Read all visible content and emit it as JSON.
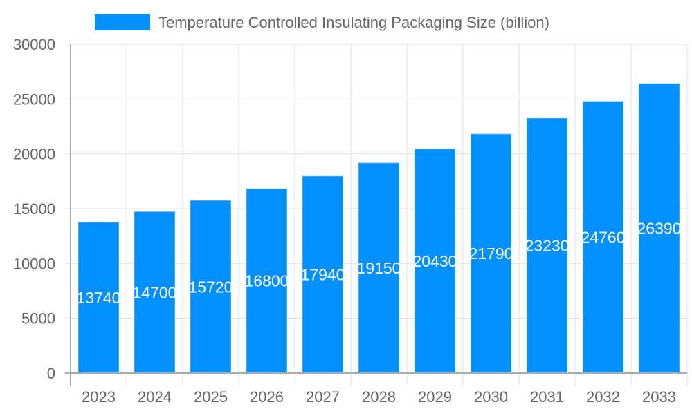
{
  "chart_data": {
    "type": "bar",
    "categories": [
      "2023",
      "2024",
      "2025",
      "2026",
      "2027",
      "2028",
      "2029",
      "2030",
      "2031",
      "2032",
      "2033"
    ],
    "series": [
      {
        "name": "Temperature Controlled Insulating Packaging Size (billion)",
        "values": [
          13740,
          14700,
          15720,
          16800,
          17940,
          19150,
          20430,
          21790,
          23230,
          24760,
          26390
        ]
      }
    ],
    "ylim": [
      0,
      30000
    ],
    "yticks": [
      0,
      5000,
      10000,
      15000,
      20000,
      25000,
      30000
    ],
    "grid": true,
    "legend": "top",
    "data_labels": true,
    "colors": {
      "bar": "#038ffe",
      "bar_border": "#3aa6ff",
      "grid": "#e0e0e0",
      "axis": "#aaaaaa",
      "text": "#666666",
      "label": "#ffffff"
    }
  }
}
